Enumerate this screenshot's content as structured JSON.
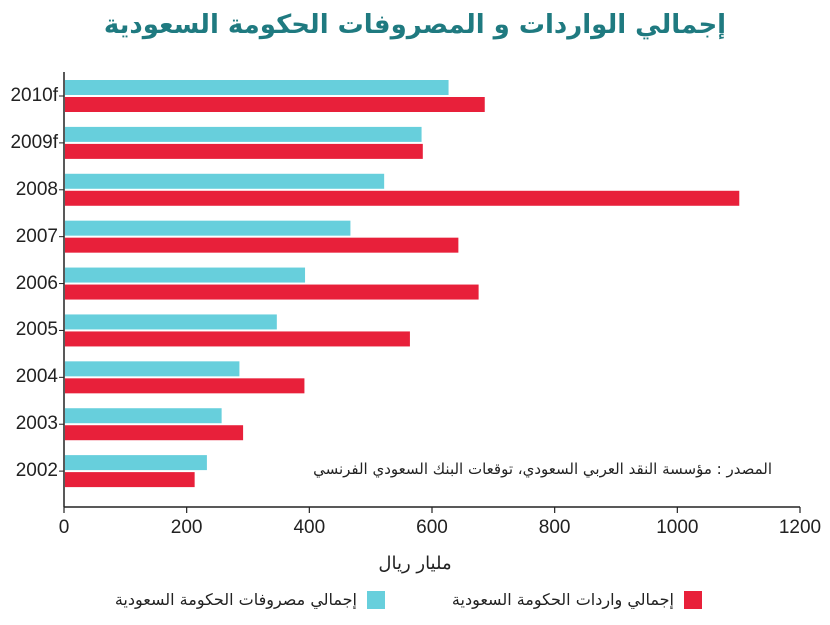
{
  "colors": {
    "revenue": "#e8203a",
    "expenditure": "#67cfdc",
    "title": "#1f7a80",
    "axis": "#222222"
  },
  "chart_data": {
    "type": "bar",
    "orientation": "horizontal",
    "title": "إجمالي الواردات و المصروفات الحكومة السعودية",
    "categories": [
      "2010f",
      "2009f",
      "2008",
      "2007",
      "2006",
      "2005",
      "2004",
      "2003",
      "2002"
    ],
    "series": [
      {
        "name": "إجمالي مصروفات الحكومة السعودية",
        "values": [
          627,
          583,
          522,
          467,
          393,
          347,
          286,
          257,
          233
        ]
      },
      {
        "name": "إجمالي واردات الحكومة السعودية",
        "values": [
          686,
          585,
          1101,
          643,
          676,
          564,
          392,
          292,
          213
        ]
      }
    ],
    "xlim": [
      0,
      1200
    ],
    "xticks": [
      0,
      200,
      400,
      600,
      800,
      1000,
      1200
    ],
    "xlabel": "مليار ريال",
    "ylabel": "",
    "grid": false,
    "legend_position": "bottom",
    "source_note": "المصدر : مؤسسة النقد العربي السعودي، توقعات البنك السعودي الفرنسي"
  }
}
